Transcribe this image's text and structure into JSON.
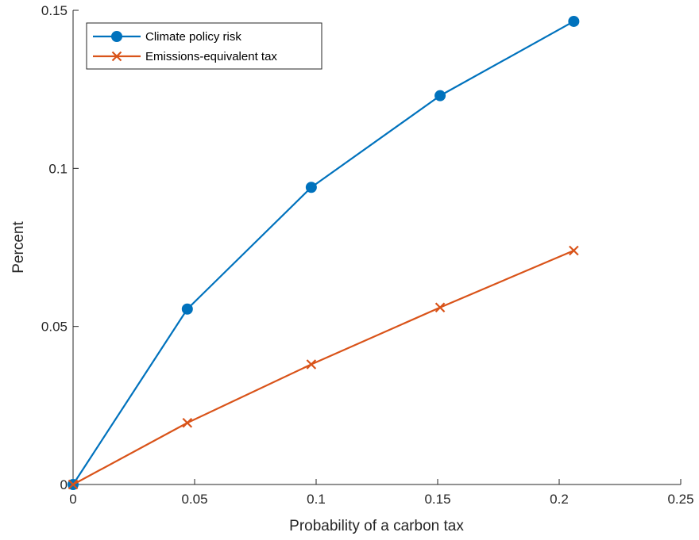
{
  "chart_data": {
    "type": "line",
    "xlabel": "Probability of a carbon tax",
    "ylabel": "Percent",
    "xlim": [
      0,
      0.25
    ],
    "ylim": [
      0,
      0.15
    ],
    "xticks": [
      0,
      0.05,
      0.1,
      0.15,
      0.2,
      0.25
    ],
    "xtick_labels": [
      "0",
      "0.05",
      "0.1",
      "0.15",
      "0.2",
      "0.25"
    ],
    "yticks": [
      0,
      0.05,
      0.1,
      0.15
    ],
    "ytick_labels": [
      "0",
      "0.05",
      "0.1",
      "0.15"
    ],
    "grid": false,
    "legend_position": "top-left",
    "series": [
      {
        "name": "Climate policy risk",
        "color": "#0072BD",
        "marker": "circle",
        "x": [
          0,
          0.047,
          0.098,
          0.151,
          0.206
        ],
        "y": [
          0,
          0.0555,
          0.094,
          0.123,
          0.1465
        ]
      },
      {
        "name": "Emissions-equivalent tax",
        "color": "#D95319",
        "marker": "x",
        "x": [
          0,
          0.047,
          0.098,
          0.151,
          0.206
        ],
        "y": [
          0,
          0.0195,
          0.038,
          0.056,
          0.074
        ]
      }
    ]
  }
}
